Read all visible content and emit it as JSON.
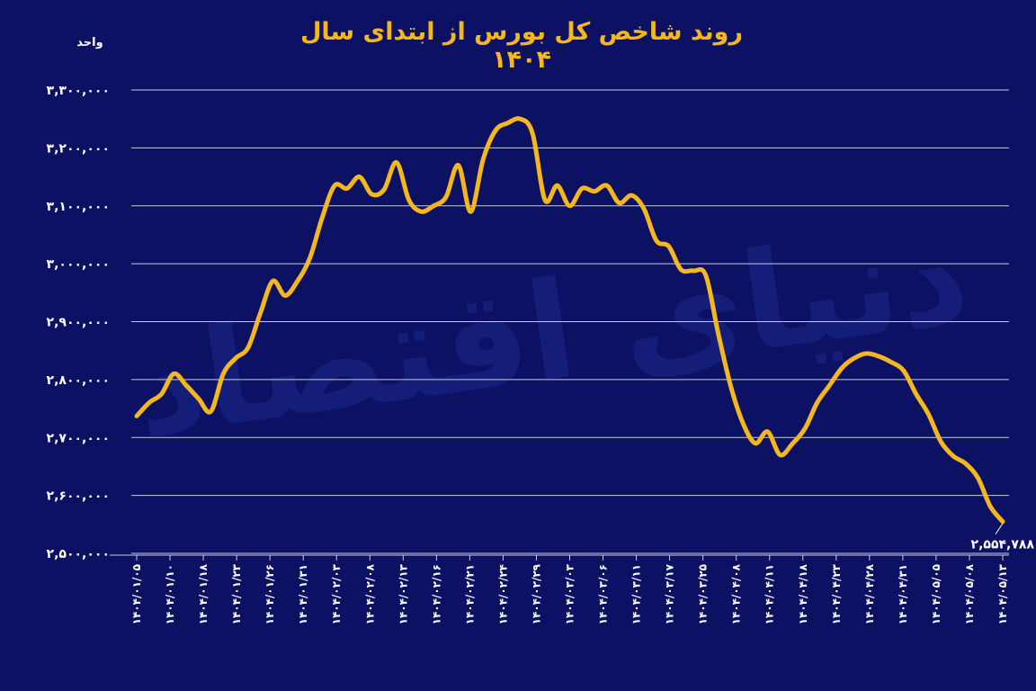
{
  "title": "روند شاخص کل بورس از ابتدای سال ۱۴۰۴",
  "unit_label": "واحد",
  "watermark": "دنیای اقتصاد",
  "colors": {
    "background": "#0c1163",
    "line": "#f5b81c",
    "grid": "#c9cbe0",
    "text": "#ffffff"
  },
  "chart_data": {
    "type": "line",
    "title": "روند شاخص کل بورس از ابتدای سال ۱۴۰۴",
    "ylabel": "واحد",
    "ylim": [
      2500000,
      3300000
    ],
    "yticks": [
      2500000,
      2600000,
      2700000,
      2800000,
      2900000,
      3000000,
      3100000,
      3200000,
      3300000
    ],
    "ytick_labels": [
      "۲,۵۰۰,۰۰۰",
      "۲,۶۰۰,۰۰۰",
      "۲,۷۰۰,۰۰۰",
      "۲,۸۰۰,۰۰۰",
      "۲,۹۰۰,۰۰۰",
      "۳,۰۰۰,۰۰۰",
      "۳,۱۰۰,۰۰۰",
      "۳,۲۰۰,۰۰۰",
      "۳,۳۰۰,۰۰۰"
    ],
    "xtick_labels": [
      "۱۴۰۴/۰۱/۰۵",
      "۱۴۰۴/۰۱/۱۰",
      "۱۴۰۴/۰۱/۱۸",
      "۱۴۰۴/۰۱/۲۳",
      "۱۴۰۴/۰۱/۲۶",
      "۱۴۰۴/۰۱/۳۱",
      "۱۴۰۴/۰۲/۰۳",
      "۱۴۰۴/۰۲/۰۸",
      "۱۴۰۴/۰۲/۱۳",
      "۱۴۰۴/۰۲/۱۶",
      "۱۴۰۴/۰۲/۲۱",
      "۱۴۰۴/۰۲/۲۴",
      "۱۴۰۴/۰۲/۲۹",
      "۱۴۰۴/۰۳/۰۳",
      "۱۴۰۴/۰۳/۰۶",
      "۱۴۰۴/۰۳/۱۱",
      "۱۴۰۴/۰۳/۱۷",
      "۱۴۰۴/۰۳/۲۵",
      "۱۴۰۴/۰۴/۰۸",
      "۱۴۰۴/۰۴/۱۱",
      "۱۴۰۴/۰۴/۱۸",
      "۱۴۰۴/۰۴/۲۳",
      "۱۴۰۴/۰۴/۲۸",
      "۱۴۰۴/۰۴/۳۱",
      "۱۴۰۴/۰۵/۰۵",
      "۱۴۰۴/۰۵/۰۸",
      "۱۴۰۴/۰۵/۱۳"
    ],
    "grid": true,
    "series": [
      {
        "values": [
          2737000,
          2760000,
          2775000,
          2810000,
          2790000,
          2767000,
          2745000,
          2810000,
          2837000,
          2855000,
          2915000,
          2970000,
          2945000,
          2970000,
          3010000,
          3080000,
          3135000,
          3130000,
          3150000,
          3120000,
          3128000,
          3175000,
          3110000,
          3090000,
          3100000,
          3115000,
          3170000,
          3090000,
          3180000,
          3230000,
          3243000,
          3250000,
          3225000,
          3110000,
          3135000,
          3100000,
          3130000,
          3125000,
          3135000,
          3105000,
          3118000,
          3095000,
          3040000,
          3030000,
          2990000,
          2988000,
          2980000,
          2880000,
          2790000,
          2725000,
          2690000,
          2710000,
          2670000,
          2689000,
          2715000,
          2760000,
          2790000,
          2820000,
          2837000,
          2845000,
          2840000,
          2830000,
          2815000,
          2775000,
          2740000,
          2693000,
          2668000,
          2655000,
          2630000,
          2581000,
          2554788
        ]
      }
    ],
    "last_value_label": "۲,۵۵۴,۷۸۸"
  }
}
